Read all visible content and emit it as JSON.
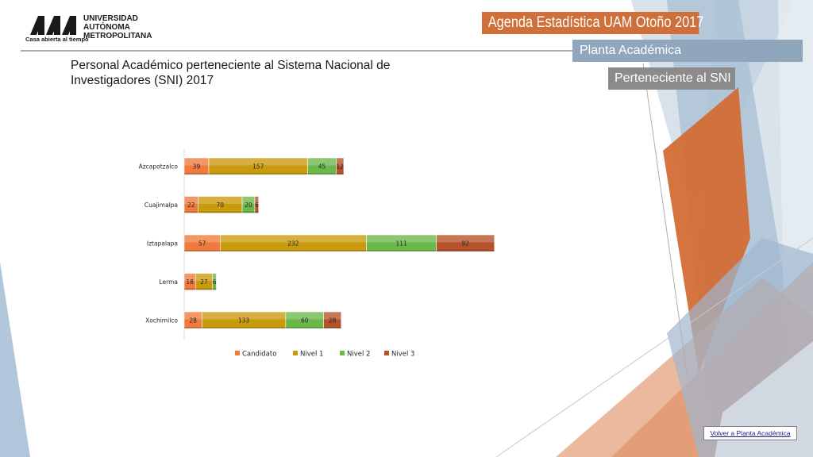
{
  "header": {
    "university_name": [
      "UNIVERSIDAD",
      "AUTÓNOMA",
      "METROPOLITANA"
    ],
    "motto": "Casa abierta al tiempo",
    "banner_title": "Agenda Estadística UAM  Otoño 2017",
    "section_label": "Planta Académica",
    "subsection_label": "Perteneciente al SNI"
  },
  "page_title": "Personal Académico perteneciente al Sistema Nacional de Investigadores (SNI) 2017",
  "footer": {
    "back_link": "Volver a Planta Académica"
  },
  "colors": {
    "candidato": "#f07a3c",
    "nivel1": "#c99a0c",
    "nivel2": "#6cb74a",
    "nivel3": "#b6512a",
    "banner_orange": "#cf6f3a",
    "banner_blue": "#8fa6bc",
    "banner_gray": "#8b8b8b"
  },
  "chart_data": {
    "type": "bar",
    "orientation": "horizontal",
    "stacked": true,
    "categories": [
      "Azcapotzalco",
      "Cuajimalpa",
      "Iztapalapa",
      "Lerma",
      "Xochimilco"
    ],
    "series": [
      {
        "name": "Candidato",
        "values": [
          39,
          22,
          57,
          18,
          28
        ]
      },
      {
        "name": "Nivel 1",
        "values": [
          157,
          70,
          232,
          27,
          133
        ]
      },
      {
        "name": "Nivel 2",
        "values": [
          45,
          20,
          111,
          6,
          60
        ]
      },
      {
        "name": "Nivel 3",
        "values": [
          12,
          6,
          92,
          0,
          28
        ]
      }
    ],
    "data_labels": true,
    "grid": false,
    "legend": "bottom",
    "xlim": [
      0,
      492
    ]
  }
}
